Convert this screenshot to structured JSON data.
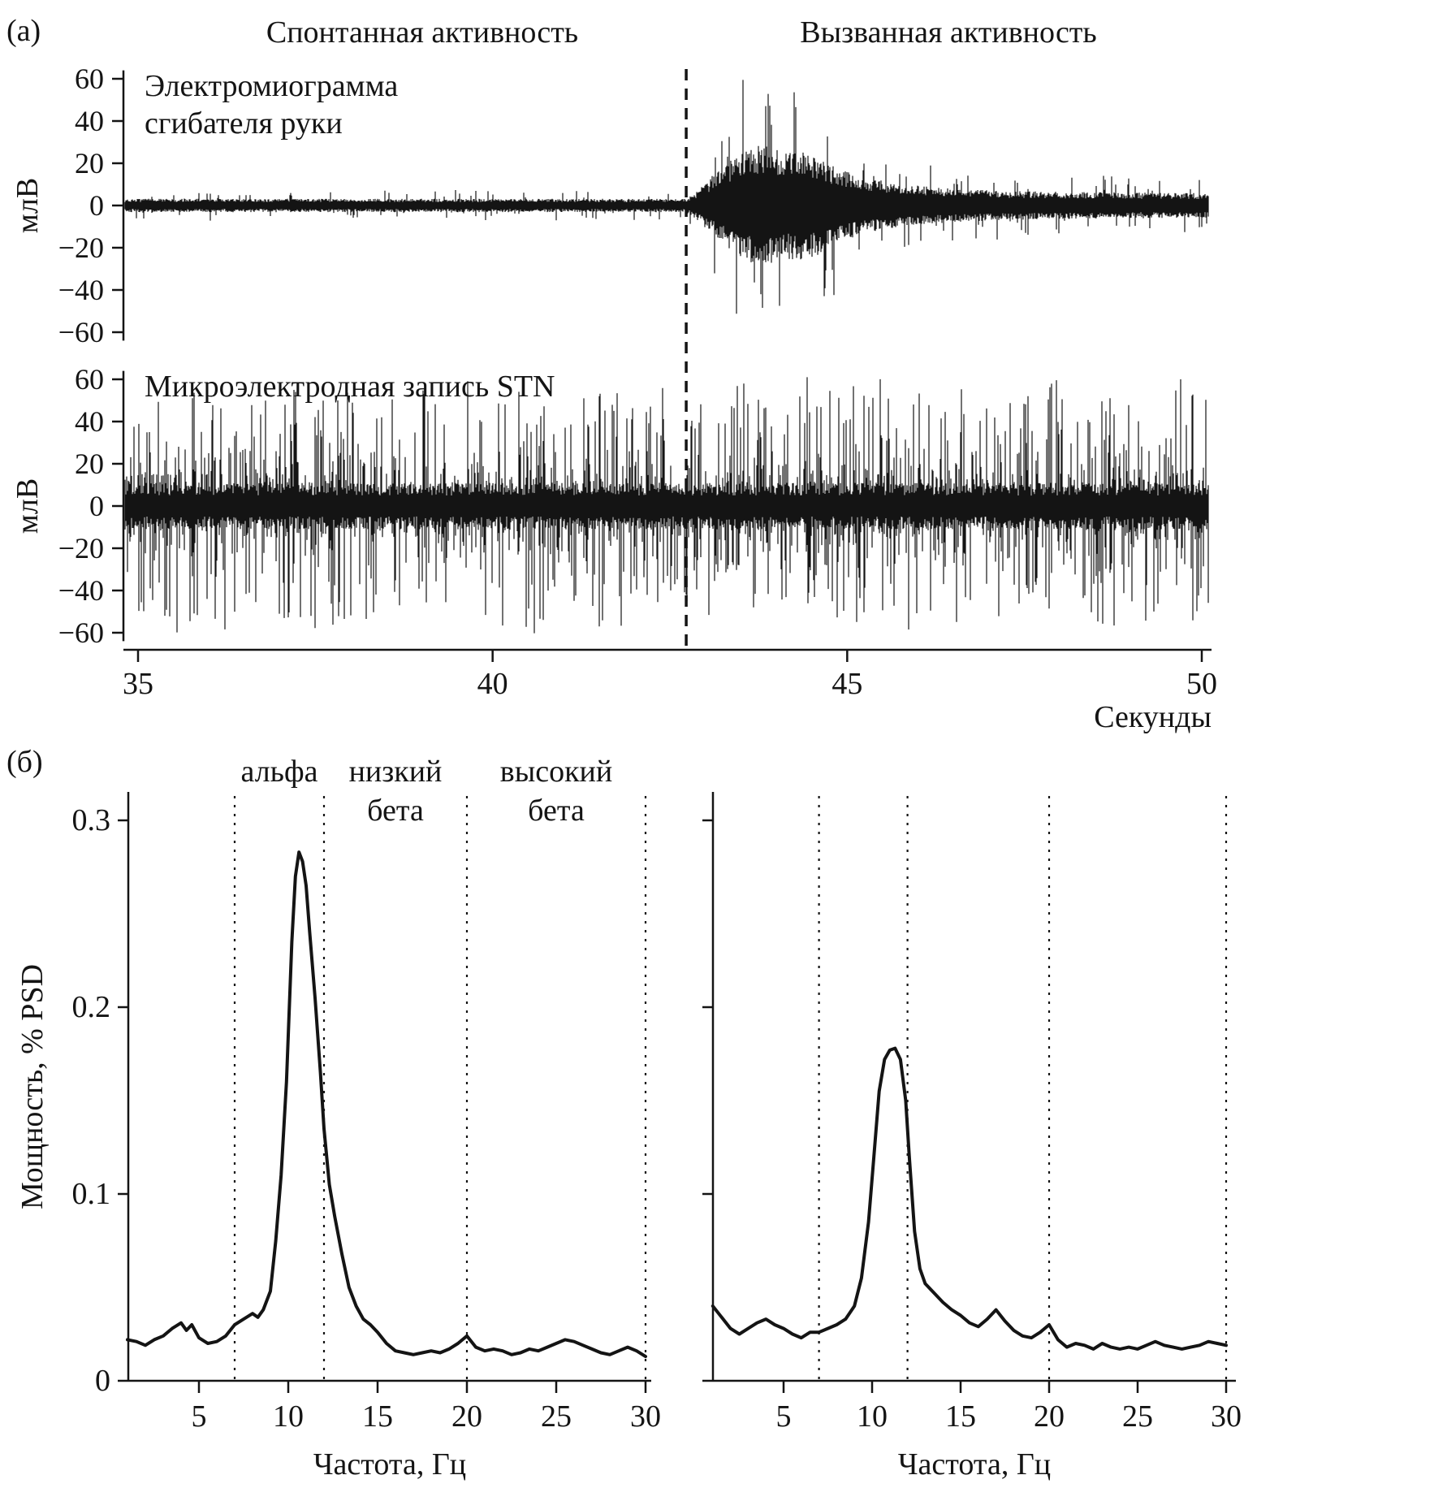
{
  "figure": {
    "background": "#ffffff",
    "ink": "#141414"
  },
  "labels": {
    "panel_a_tag": "(а)",
    "panel_b_tag": "(б)",
    "spontaneous_title": "Спонтанная активность",
    "evoked_title": "Вызванная активность",
    "emg_label_lines": [
      "Электромиограмма",
      "сгибателя руки"
    ],
    "stn_label": "Микроэлектродная запись STN",
    "band_labels": [
      {
        "lines": [
          "альфа"
        ],
        "center_hz": 9.5
      },
      {
        "lines": [
          "низкий",
          "бета"
        ],
        "center_hz": 16
      },
      {
        "lines": [
          "высокий",
          "бета"
        ],
        "center_hz": 25
      }
    ]
  },
  "chart_data": [
    {
      "id": "emg_trace",
      "type": "line",
      "title": "Электромиограмма сгибателя руки",
      "xlabel": "Секунды",
      "ylabel": "млВ",
      "xlim": [
        34.8,
        50.2
      ],
      "ylim": [
        -65,
        65
      ],
      "x_ticks": [
        35,
        40,
        45,
        50
      ],
      "y_ticks": [
        60,
        40,
        20,
        0,
        -20,
        -40,
        -60
      ],
      "grid": false,
      "signal": "surface EMG: low-amplitude spontaneous noise, large burst after stimulus onset, slow decay",
      "event_time_s": 42.73,
      "amplitude_envelope_mv": [
        [
          34.8,
          3
        ],
        [
          42.72,
          3
        ],
        [
          42.9,
          7
        ],
        [
          43.2,
          16
        ],
        [
          43.5,
          24
        ],
        [
          43.8,
          28
        ],
        [
          44.1,
          24
        ],
        [
          44.45,
          25
        ],
        [
          44.8,
          18
        ],
        [
          45.2,
          13
        ],
        [
          45.7,
          10
        ],
        [
          46.3,
          8
        ],
        [
          47.2,
          6.5
        ],
        [
          48.5,
          6
        ],
        [
          50.2,
          5.5
        ]
      ],
      "noise_seed": 7,
      "spike_prob": 0.06
    },
    {
      "id": "stn_microelectrode_trace",
      "type": "line",
      "title": "Микроэлектродная запись STN",
      "xlabel": "Секунды",
      "ylabel": "млВ",
      "xlim": [
        34.8,
        50.2
      ],
      "ylim": [
        -65,
        65
      ],
      "x_ticks": [
        35,
        40,
        45,
        50
      ],
      "y_ticks": [
        60,
        40,
        20,
        0,
        -20,
        -40,
        -60
      ],
      "grid": false,
      "signal": "dense multiunit spiking, roughly stationary across whole record",
      "band_amplitude_mv": 11,
      "spike_prob": 0.4,
      "spike_max_mv": 55,
      "noise_seed": 13
    },
    {
      "id": "psd_spontaneous",
      "type": "line",
      "xlabel": "Частота, Гц",
      "ylabel": "Мощность, % PSD",
      "xlim": [
        1,
        30.5
      ],
      "ylim": [
        0,
        0.31
      ],
      "x_ticks": [
        5,
        10,
        15,
        20,
        25,
        30
      ],
      "y_ticks": [
        0,
        0.1,
        0.2,
        0.3
      ],
      "grid": false,
      "band_boundaries_hz": [
        7,
        12,
        20,
        30
      ],
      "peak": {
        "hz": 10.6,
        "psd": 0.283
      },
      "x": [
        1,
        1.5,
        2,
        2.5,
        3,
        3.5,
        4,
        4.3,
        4.6,
        5,
        5.5,
        6,
        6.5,
        7,
        7.5,
        8,
        8.3,
        8.6,
        9,
        9.3,
        9.6,
        9.9,
        10.2,
        10.4,
        10.6,
        10.8,
        11,
        11.2,
        11.5,
        11.8,
        12,
        12.3,
        12.6,
        13,
        13.4,
        13.8,
        14.2,
        14.6,
        15,
        15.5,
        16,
        16.5,
        17,
        17.5,
        18,
        18.5,
        19,
        19.5,
        20,
        20.5,
        21,
        21.5,
        22,
        22.5,
        23,
        23.5,
        24,
        24.5,
        25,
        25.5,
        26,
        26.5,
        27,
        27.5,
        28,
        28.5,
        29,
        29.5,
        30
      ],
      "y": [
        0.022,
        0.021,
        0.019,
        0.022,
        0.024,
        0.028,
        0.031,
        0.027,
        0.03,
        0.023,
        0.02,
        0.021,
        0.024,
        0.03,
        0.033,
        0.036,
        0.034,
        0.038,
        0.048,
        0.075,
        0.11,
        0.16,
        0.235,
        0.27,
        0.283,
        0.278,
        0.265,
        0.24,
        0.205,
        0.165,
        0.135,
        0.105,
        0.088,
        0.068,
        0.05,
        0.04,
        0.033,
        0.03,
        0.026,
        0.02,
        0.016,
        0.015,
        0.014,
        0.015,
        0.016,
        0.015,
        0.017,
        0.02,
        0.024,
        0.018,
        0.016,
        0.017,
        0.016,
        0.014,
        0.015,
        0.017,
        0.016,
        0.018,
        0.02,
        0.022,
        0.021,
        0.019,
        0.017,
        0.015,
        0.014,
        0.016,
        0.018,
        0.016,
        0.013
      ]
    },
    {
      "id": "psd_evoked",
      "type": "line",
      "xlabel": "Частота, Гц",
      "ylabel": "Мощность, % PSD",
      "xlim": [
        1,
        30.5
      ],
      "ylim": [
        0,
        0.31
      ],
      "x_ticks": [
        5,
        10,
        15,
        20,
        25,
        30
      ],
      "y_ticks": [
        0,
        0.1,
        0.2,
        0.3
      ],
      "grid": false,
      "band_boundaries_hz": [
        7,
        12,
        20,
        30
      ],
      "peak": {
        "hz": 11.3,
        "psd": 0.178
      },
      "x": [
        1,
        1.5,
        2,
        2.5,
        3,
        3.5,
        4,
        4.5,
        5,
        5.5,
        6,
        6.5,
        7,
        7.5,
        8,
        8.5,
        9,
        9.4,
        9.8,
        10.1,
        10.4,
        10.7,
        11,
        11.3,
        11.6,
        11.9,
        12.1,
        12.4,
        12.7,
        13,
        13.5,
        14,
        14.5,
        15,
        15.5,
        16,
        16.5,
        17,
        17.5,
        18,
        18.5,
        19,
        19.5,
        20,
        20.5,
        21,
        21.5,
        22,
        22.5,
        23,
        23.5,
        24,
        24.5,
        25,
        25.5,
        26,
        26.5,
        27,
        27.5,
        28,
        28.5,
        29,
        29.5,
        30
      ],
      "y": [
        0.04,
        0.034,
        0.028,
        0.025,
        0.028,
        0.031,
        0.033,
        0.03,
        0.028,
        0.025,
        0.023,
        0.026,
        0.026,
        0.028,
        0.03,
        0.033,
        0.04,
        0.055,
        0.085,
        0.12,
        0.155,
        0.172,
        0.177,
        0.178,
        0.172,
        0.15,
        0.12,
        0.08,
        0.06,
        0.052,
        0.047,
        0.042,
        0.038,
        0.035,
        0.031,
        0.029,
        0.033,
        0.038,
        0.032,
        0.027,
        0.024,
        0.023,
        0.026,
        0.03,
        0.022,
        0.018,
        0.02,
        0.019,
        0.017,
        0.02,
        0.018,
        0.017,
        0.018,
        0.017,
        0.019,
        0.021,
        0.019,
        0.018,
        0.017,
        0.018,
        0.019,
        0.021,
        0.02,
        0.019
      ]
    }
  ]
}
